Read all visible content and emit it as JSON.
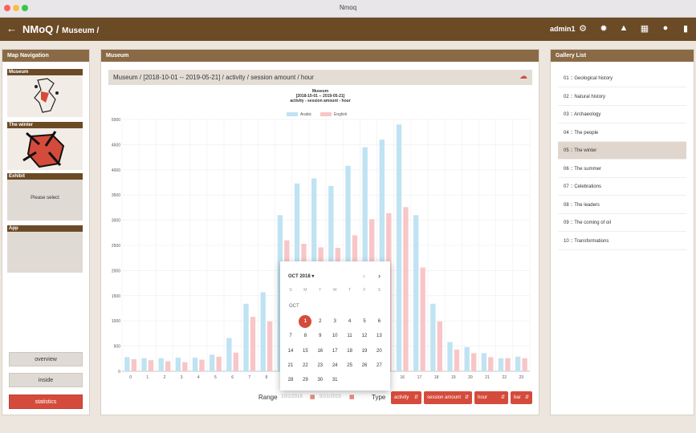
{
  "window": {
    "title": "Nmoq"
  },
  "appbar": {
    "title": "NMoQ / ",
    "subtitle": "Museum /",
    "user": "admin1"
  },
  "left_panel": {
    "title": "Map Navigation",
    "sections": [
      {
        "label": "Museum"
      },
      {
        "label": "The winter"
      },
      {
        "label": "Exhibit",
        "text": "Please select"
      },
      {
        "label": "App"
      }
    ],
    "buttons": [
      "overview",
      "inside",
      "statistics"
    ]
  },
  "center_panel": {
    "title": "Museum",
    "breadcrumb": "Museum / [2018-10-01 -- 2019-05-21] / activity / session amount / hour",
    "chart_heading": [
      "Museum",
      "[2018-10-01 -- 2019-05-21]",
      "activity - session amount - hour"
    ],
    "range_label": "Range",
    "start_date": "10/1/2018",
    "end_date": "5/21/2019",
    "type_label": "Type",
    "selects": [
      "activity",
      "session amount",
      "hour",
      "bar"
    ]
  },
  "datepicker": {
    "month_title": "OCT 2018",
    "month_short": "OCT",
    "weekdays": [
      "S",
      "M",
      "T",
      "W",
      "T",
      "F",
      "S"
    ],
    "weeks": [
      [
        "",
        "1",
        "2",
        "3",
        "4",
        "5",
        "6"
      ],
      [
        "7",
        "8",
        "9",
        "10",
        "11",
        "12",
        "13"
      ],
      [
        "14",
        "15",
        "16",
        "17",
        "18",
        "19",
        "20"
      ],
      [
        "21",
        "22",
        "23",
        "24",
        "25",
        "26",
        "27"
      ],
      [
        "28",
        "29",
        "30",
        "31",
        "",
        "",
        ""
      ]
    ],
    "selected": "1"
  },
  "gallery": {
    "title": "Gallery List",
    "items": [
      "01 :: Geological history",
      "02 :: Natural history",
      "03 :: Archaeology",
      "04 :: The people",
      "05 :: The winter",
      "06 :: The summer",
      "07 :: Celebrations",
      "08 :: The leaders",
      "09 :: The coming of oil",
      "10 :: Transformations"
    ],
    "active_index": 4
  },
  "colors": {
    "arabic": "#bfe3f3",
    "english": "#f8c6c8",
    "accent": "#d54b3b",
    "brand": "#6b4a26"
  },
  "chart_data": {
    "type": "bar",
    "categories": [
      "0",
      "1",
      "2",
      "3",
      "4",
      "5",
      "6",
      "7",
      "8",
      "9",
      "10",
      "11",
      "12",
      "13",
      "14",
      "15",
      "16",
      "17",
      "18",
      "19",
      "20",
      "21",
      "22",
      "23"
    ],
    "series": [
      {
        "name": "Arabic",
        "values": [
          280,
          260,
          260,
          270,
          270,
          330,
          660,
          1340,
          1570,
          3100,
          3730,
          3830,
          3680,
          4080,
          4450,
          4600,
          4900,
          3100,
          1340,
          580,
          480,
          360,
          260,
          290
        ]
      },
      {
        "name": "English",
        "values": [
          240,
          220,
          200,
          180,
          230,
          290,
          370,
          1080,
          990,
          2600,
          2530,
          2460,
          2450,
          2700,
          3020,
          3140,
          3260,
          2060,
          990,
          430,
          360,
          280,
          260,
          260
        ]
      }
    ],
    "ylim": [
      0,
      5000
    ],
    "yticks": [
      0,
      500,
      1000,
      1500,
      2000,
      2500,
      3000,
      3500,
      4000,
      4500,
      5000
    ],
    "legend": "top-center",
    "grid": true
  }
}
